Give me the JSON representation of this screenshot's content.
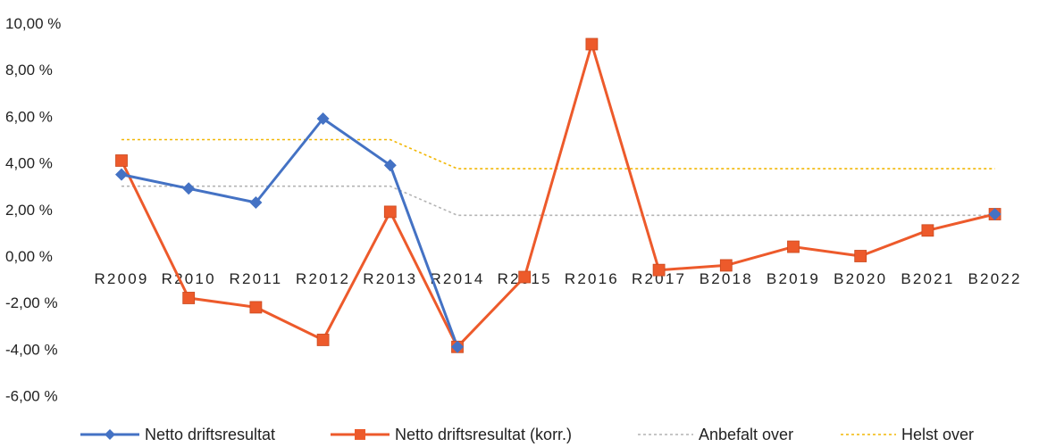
{
  "chart_data": {
    "type": "line",
    "categories": [
      "R2009",
      "R2010",
      "R2011",
      "R2012",
      "R2013",
      "R2014",
      "R2015",
      "R2016",
      "R2017",
      "B2018",
      "B2019",
      "B2020",
      "B2021",
      "B2022"
    ],
    "ylim": [
      -6,
      10
    ],
    "yticks": [
      10,
      8,
      6,
      4,
      2,
      0,
      -2,
      -4,
      -6
    ],
    "ytick_labels": [
      "10,00 %",
      "8,00 %",
      "6,00 %",
      "4,00 %",
      "2,00 %",
      "0,00 %",
      "-2,00 %",
      "-4,00 %",
      "-6,00 %"
    ],
    "grid": false,
    "legend_position": "bottom",
    "series": [
      {
        "name": "Netto driftsresultat",
        "color": "#4472C4",
        "marker": "diamond",
        "style": "solid",
        "values": [
          3.5,
          2.9,
          2.3,
          5.9,
          3.9,
          -3.9,
          null,
          null,
          null,
          null,
          null,
          null,
          null,
          1.8
        ]
      },
      {
        "name": "Netto driftsresultat (korr.)",
        "color": "#ED5A2B",
        "marker": "square",
        "style": "solid",
        "values": [
          4.1,
          -1.8,
          -2.2,
          -3.6,
          1.9,
          -3.9,
          -0.9,
          9.1,
          -0.6,
          -0.4,
          0.4,
          0.0,
          1.1,
          1.8
        ]
      },
      {
        "name": "Anbefalt over",
        "color": "#B4B4B4",
        "marker": "none",
        "style": "dashed",
        "values": [
          3.0,
          3.0,
          3.0,
          3.0,
          3.0,
          1.75,
          1.75,
          1.75,
          1.75,
          1.75,
          1.75,
          1.75,
          1.75,
          1.75
        ]
      },
      {
        "name": "Helst over",
        "color": "#F2B705",
        "marker": "none",
        "style": "dashed",
        "values": [
          5.0,
          5.0,
          5.0,
          5.0,
          5.0,
          3.75,
          3.75,
          3.75,
          3.75,
          3.75,
          3.75,
          3.75,
          3.75,
          3.75
        ]
      }
    ]
  }
}
